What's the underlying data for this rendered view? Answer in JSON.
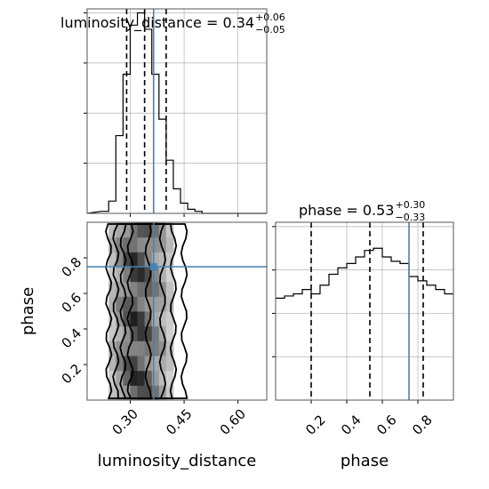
{
  "chart_data": {
    "type": "corner",
    "parameters": [
      "luminosity_distance",
      "phase"
    ],
    "panels": [
      {
        "id": "hist-luminosity_distance",
        "type": "step-histogram",
        "title_main": "luminosity_distance = 0.34",
        "title_plus": "+0.06",
        "title_minus": "−0.05",
        "median": 0.34,
        "quantiles": [
          0.29,
          0.34,
          0.4
        ],
        "truth": 0.365,
        "xlim": [
          0.18,
          0.68
        ],
        "bins": [
          {
            "x0": 0.22,
            "x1": 0.24,
            "count": 1
          },
          {
            "x0": 0.24,
            "x1": 0.26,
            "count": 6
          },
          {
            "x0": 0.26,
            "x1": 0.28,
            "count": 38
          },
          {
            "x0": 0.28,
            "x1": 0.3,
            "count": 68
          },
          {
            "x0": 0.3,
            "x1": 0.32,
            "count": 92
          },
          {
            "x0": 0.32,
            "x1": 0.34,
            "count": 98
          },
          {
            "x0": 0.34,
            "x1": 0.36,
            "count": 90
          },
          {
            "x0": 0.36,
            "x1": 0.38,
            "count": 68
          },
          {
            "x0": 0.38,
            "x1": 0.4,
            "count": 46
          },
          {
            "x0": 0.4,
            "x1": 0.42,
            "count": 26
          },
          {
            "x0": 0.42,
            "x1": 0.44,
            "count": 12
          },
          {
            "x0": 0.44,
            "x1": 0.46,
            "count": 5
          },
          {
            "x0": 0.46,
            "x1": 0.48,
            "count": 2
          },
          {
            "x0": 0.48,
            "x1": 0.5,
            "count": 1
          }
        ]
      },
      {
        "id": "hist-phase",
        "type": "step-histogram",
        "title_main": "phase = 0.53",
        "title_plus": "+0.30",
        "title_minus": "−0.33",
        "median": 0.53,
        "quantiles": [
          0.2,
          0.53,
          0.83
        ],
        "truth": 0.75,
        "xlim": [
          0.0,
          1.0
        ],
        "bins": [
          {
            "x0": 0.0,
            "x1": 0.05,
            "count": 47
          },
          {
            "x0": 0.05,
            "x1": 0.1,
            "count": 48
          },
          {
            "x0": 0.1,
            "x1": 0.15,
            "count": 49
          },
          {
            "x0": 0.15,
            "x1": 0.2,
            "count": 51
          },
          {
            "x0": 0.2,
            "x1": 0.25,
            "count": 49
          },
          {
            "x0": 0.25,
            "x1": 0.3,
            "count": 53
          },
          {
            "x0": 0.3,
            "x1": 0.35,
            "count": 58
          },
          {
            "x0": 0.35,
            "x1": 0.4,
            "count": 61
          },
          {
            "x0": 0.4,
            "x1": 0.45,
            "count": 63
          },
          {
            "x0": 0.45,
            "x1": 0.5,
            "count": 66
          },
          {
            "x0": 0.5,
            "x1": 0.55,
            "count": 69
          },
          {
            "x0": 0.55,
            "x1": 0.6,
            "count": 70
          },
          {
            "x0": 0.6,
            "x1": 0.65,
            "count": 66
          },
          {
            "x0": 0.65,
            "x1": 0.7,
            "count": 64
          },
          {
            "x0": 0.7,
            "x1": 0.75,
            "count": 63
          },
          {
            "x0": 0.75,
            "x1": 0.8,
            "count": 57
          },
          {
            "x0": 0.8,
            "x1": 0.85,
            "count": 55
          },
          {
            "x0": 0.85,
            "x1": 0.9,
            "count": 53
          },
          {
            "x0": 0.9,
            "x1": 0.95,
            "count": 51
          },
          {
            "x0": 0.95,
            "x1": 1.0,
            "count": 49
          }
        ]
      },
      {
        "id": "scatter-luminosity_distance-vs-phase",
        "type": "2d-density",
        "xlim": [
          0.18,
          0.68
        ],
        "ylim": [
          0.0,
          1.0
        ],
        "truth": {
          "x": 0.365,
          "y": 0.75
        },
        "density_columns": [
          {
            "x0": 0.24,
            "x1": 0.26,
            "level": 0.3
          },
          {
            "x0": 0.26,
            "x1": 0.28,
            "level": 0.55
          },
          {
            "x0": 0.28,
            "x1": 0.3,
            "level": 0.8
          },
          {
            "x0": 0.3,
            "x1": 0.32,
            "level": 1.0
          },
          {
            "x0": 0.32,
            "x1": 0.34,
            "level": 0.95
          },
          {
            "x0": 0.34,
            "x1": 0.36,
            "level": 0.8
          },
          {
            "x0": 0.36,
            "x1": 0.38,
            "level": 0.6
          },
          {
            "x0": 0.38,
            "x1": 0.4,
            "level": 0.45
          },
          {
            "x0": 0.4,
            "x1": 0.42,
            "level": 0.25
          }
        ],
        "contours": [
          {
            "xmin": 0.24,
            "xmax": 0.45
          },
          {
            "xmin": 0.26,
            "xmax": 0.42
          },
          {
            "xmin": 0.28,
            "xmax": 0.39
          },
          {
            "xmin": 0.3,
            "xmax": 0.35
          }
        ]
      }
    ],
    "axes": {
      "luminosity_distance": {
        "label": "luminosity_distance",
        "ticks": [
          0.3,
          0.45,
          0.6
        ],
        "tick_labels": [
          "0.30",
          "0.45",
          "0.60"
        ]
      },
      "phase": {
        "label": "phase",
        "ticks": [
          0.2,
          0.4,
          0.6,
          0.8
        ],
        "tick_labels": [
          "0.2",
          "0.4",
          "0.6",
          "0.8"
        ]
      }
    },
    "grid": true,
    "truth_color": "#4682b4",
    "line_color": "#000000",
    "grid_color": "#b0b0b0"
  }
}
